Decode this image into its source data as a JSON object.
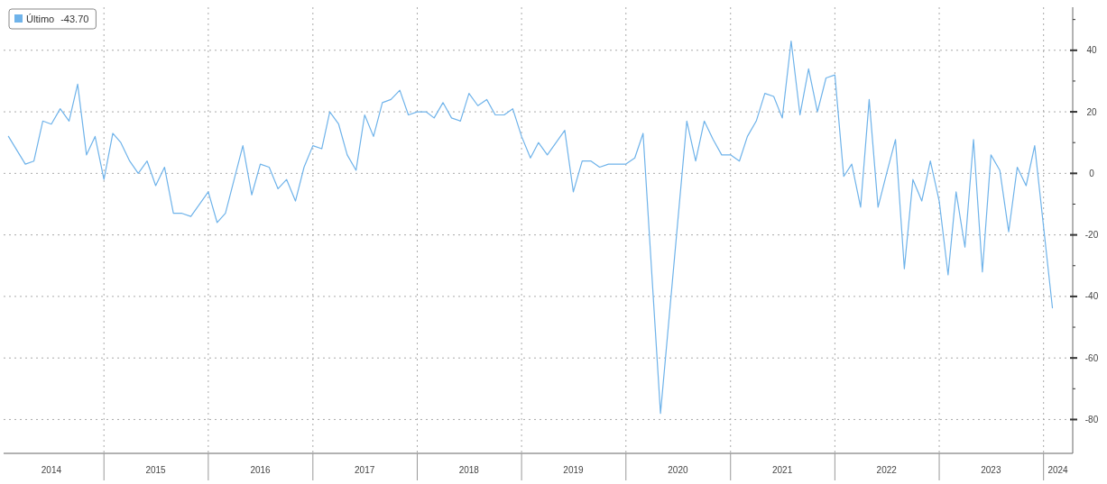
{
  "chart_data": {
    "type": "line",
    "x": [
      "2014-02",
      "2014-04",
      "2014-05",
      "2014-06",
      "2014-07",
      "2014-08",
      "2014-09",
      "2014-10",
      "2014-11",
      "2014-12",
      "2015-01",
      "2015-02",
      "2015-03",
      "2015-04",
      "2015-05",
      "2015-06",
      "2015-07",
      "2015-08",
      "2015-09",
      "2015-10",
      "2015-11",
      "2016-01",
      "2016-02",
      "2016-03",
      "2016-05",
      "2016-06",
      "2016-07",
      "2016-08",
      "2016-09",
      "2016-10",
      "2016-11",
      "2016-12",
      "2017-01",
      "2017-02",
      "2017-03",
      "2017-04",
      "2017-05",
      "2017-06",
      "2017-07",
      "2017-08",
      "2017-09",
      "2017-10",
      "2017-11",
      "2017-12",
      "2018-01",
      "2018-02",
      "2018-03",
      "2018-04",
      "2018-05",
      "2018-06",
      "2018-07",
      "2018-08",
      "2018-09",
      "2018-10",
      "2018-11",
      "2018-12",
      "2019-01",
      "2019-02",
      "2019-03",
      "2019-04",
      "2019-06",
      "2019-07",
      "2019-08",
      "2019-09",
      "2019-10",
      "2019-11",
      "2019-12",
      "2020-01",
      "2020-02",
      "2020-03",
      "2020-05",
      "2020-08",
      "2020-09",
      "2020-10",
      "2020-11",
      "2020-12",
      "2021-01",
      "2021-02",
      "2021-03",
      "2021-04",
      "2021-05",
      "2021-06",
      "2021-07",
      "2021-08",
      "2021-09",
      "2021-10",
      "2021-11",
      "2021-12",
      "2022-01",
      "2022-02",
      "2022-03",
      "2022-04",
      "2022-05",
      "2022-06",
      "2022-07",
      "2022-08",
      "2022-09",
      "2022-10",
      "2022-11",
      "2022-12",
      "2023-01",
      "2023-02",
      "2023-03",
      "2023-04",
      "2023-05",
      "2023-06",
      "2023-07",
      "2023-08",
      "2023-09",
      "2023-10",
      "2023-11",
      "2023-12",
      "2024-02"
    ],
    "series": [
      {
        "name": "Último",
        "color": "#6fb3ea",
        "values": [
          12,
          3,
          4,
          17,
          16,
          21,
          17,
          29,
          6,
          12,
          -2,
          13,
          10,
          4,
          0,
          4,
          -4,
          2,
          -13,
          -13,
          -14,
          -6,
          -16,
          -13,
          9,
          -7,
          3,
          2,
          -5,
          -2,
          -9,
          2,
          9,
          8,
          20,
          16,
          6,
          1,
          19,
          12,
          23,
          24,
          27,
          19,
          20,
          20,
          18,
          23,
          18,
          17,
          26,
          22,
          24,
          19,
          19,
          21,
          12,
          5,
          10,
          6,
          14,
          -6,
          4,
          4,
          2,
          3,
          3,
          3,
          5,
          13,
          -78,
          17,
          4,
          17,
          11,
          6,
          6,
          4,
          12,
          17,
          26,
          25,
          18,
          43,
          19,
          34,
          20,
          31,
          32,
          -1,
          3,
          -11,
          24,
          -11,
          0,
          11,
          -31,
          -2,
          -9,
          4,
          -9,
          -33,
          -6,
          -24,
          11,
          -32,
          6,
          1,
          -19,
          2,
          -4,
          9,
          -43.7
        ]
      }
    ],
    "annotations": [
      "-43.70"
    ],
    "xlim": [
      "2014-01-15",
      "2024-04-12"
    ],
    "xticks": [
      {
        "value": "2014-07-01",
        "label": "2014"
      },
      {
        "value": "2015-01-01",
        "label": null
      },
      {
        "value": "2015-07-01",
        "label": "2015"
      },
      {
        "value": "2016-01-01",
        "label": null
      },
      {
        "value": "2016-07-01",
        "label": "2016"
      },
      {
        "value": "2017-01-01",
        "label": null
      },
      {
        "value": "2017-07-01",
        "label": "2017"
      },
      {
        "value": "2018-01-01",
        "label": null
      },
      {
        "value": "2018-07-01",
        "label": "2018"
      },
      {
        "value": "2019-01-01",
        "label": null
      },
      {
        "value": "2019-07-01",
        "label": "2019"
      },
      {
        "value": "2020-01-01",
        "label": null
      },
      {
        "value": "2020-07-01",
        "label": "2020"
      },
      {
        "value": "2021-01-01",
        "label": null
      },
      {
        "value": "2021-07-01",
        "label": "2021"
      },
      {
        "value": "2022-01-01",
        "label": null
      },
      {
        "value": "2022-07-01",
        "label": "2022"
      },
      {
        "value": "2023-01-01",
        "label": null
      },
      {
        "value": "2023-07-01",
        "label": "2023"
      },
      {
        "value": "2024-01-01",
        "label": null
      },
      {
        "value": "2024-02-20",
        "label": "2024"
      }
    ],
    "ylim": [
      -91,
      54
    ],
    "yticks": [
      -80,
      {
        "value": -70,
        "label": null
      },
      -60,
      {
        "value": -50,
        "label": null
      },
      -40,
      {
        "value": -30,
        "label": null
      },
      -20,
      {
        "value": -10,
        "label": null
      },
      0,
      {
        "value": 10,
        "label": null
      },
      20,
      {
        "value": 30,
        "label": null
      },
      40,
      {
        "value": 50,
        "label": null
      }
    ],
    "grid": true,
    "legend": "top left",
    "marker": "none",
    "line_style": "solid"
  }
}
